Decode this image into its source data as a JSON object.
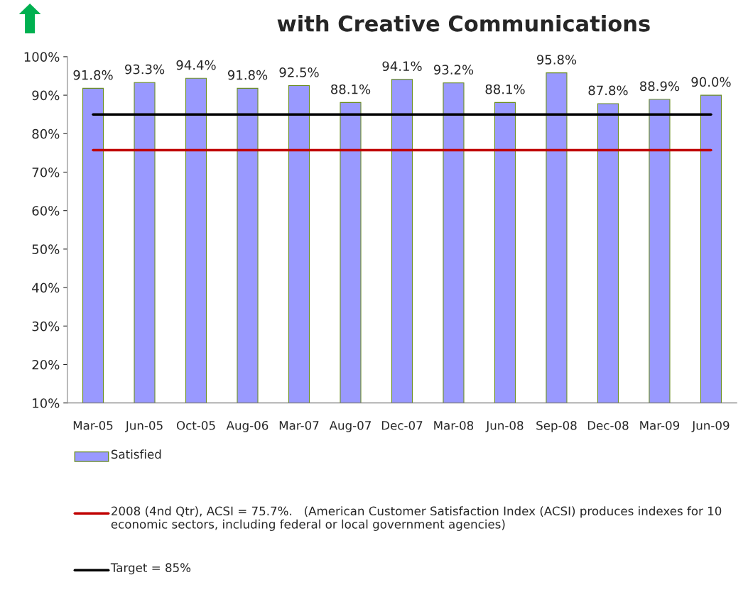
{
  "chart_data": {
    "type": "bar",
    "title": "with Creative Communications",
    "categories": [
      "Mar-05",
      "Jun-05",
      "Oct-05",
      "Aug-06",
      "Mar-07",
      "Aug-07",
      "Dec-07",
      "Mar-08",
      "Jun-08",
      "Sep-08",
      "Dec-08",
      "Mar-09",
      "Jun-09"
    ],
    "series": [
      {
        "name": "Satisfied",
        "color": "#9999ff",
        "values": [
          91.8,
          93.3,
          94.4,
          91.8,
          92.5,
          88.1,
          94.1,
          93.2,
          88.1,
          95.8,
          87.8,
          88.9,
          90.0
        ],
        "value_labels": [
          "91.8%",
          "93.3%",
          "94.4%",
          "91.8%",
          "92.5%",
          "88.1%",
          "94.1%",
          "93.2%",
          "88.1%",
          "95.8%",
          "87.8%",
          "88.9%",
          "90.0%"
        ]
      }
    ],
    "ylim": [
      10,
      100
    ],
    "yticks": [
      {
        "value": 10,
        "label": "10%"
      },
      {
        "value": 20,
        "label": "20%"
      },
      {
        "value": 30,
        "label": "30%"
      },
      {
        "value": 40,
        "label": "40%"
      },
      {
        "value": 50,
        "label": "50%"
      },
      {
        "value": 60,
        "label": "60%"
      },
      {
        "value": 70,
        "label": "70%"
      },
      {
        "value": 80,
        "label": "80%"
      },
      {
        "value": 90,
        "label": "90%"
      },
      {
        "value": 100,
        "label": "100%"
      }
    ],
    "ref_lines": [
      {
        "axis": "y",
        "value": 75.7,
        "color": "#c00000",
        "label": "2008 (4nd Qtr), ACSI = 75.7%.   (American Customer Satisfaction Index (ACSI) produces indexes for 10 economic sectors, including federal or local government agencies)"
      },
      {
        "axis": "y",
        "value": 85,
        "color": "#000000",
        "label": "Target = 85%"
      }
    ],
    "grid": false,
    "legend": "bottom"
  }
}
